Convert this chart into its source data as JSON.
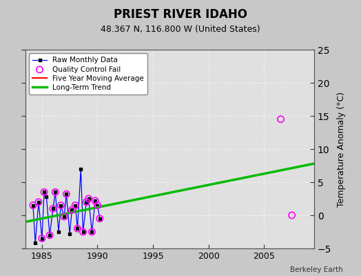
{
  "title": "PRIEST RIVER IDAHO",
  "subtitle": "48.367 N, 116.800 W (United States)",
  "credit": "Berkeley Earth",
  "ylabel": "Temperature Anomaly (°C)",
  "xlim": [
    1983.5,
    2009.5
  ],
  "ylim": [
    -5,
    25
  ],
  "yticks": [
    -5,
    0,
    5,
    10,
    15,
    20,
    25
  ],
  "xticks": [
    1985,
    1990,
    1995,
    2000,
    2005
  ],
  "bg_color": "#c8c8c8",
  "plot_bg_color": "#e0e0e0",
  "raw_x": [
    1984.2,
    1984.4,
    1984.7,
    1985.0,
    1985.2,
    1985.4,
    1985.7,
    1986.0,
    1986.2,
    1986.5,
    1986.7,
    1987.0,
    1987.2,
    1987.5,
    1987.7,
    1988.0,
    1988.2,
    1988.5,
    1988.7,
    1989.0,
    1989.2,
    1989.5,
    1989.8,
    1990.0,
    1990.2
  ],
  "raw_y": [
    1.5,
    -4.2,
    2.0,
    -3.5,
    3.5,
    2.8,
    -3.0,
    1.0,
    3.5,
    -2.5,
    1.5,
    -0.2,
    3.2,
    -2.8,
    0.8,
    1.5,
    -2.0,
    7.0,
    -2.5,
    2.0,
    2.5,
    -2.5,
    2.2,
    1.5,
    -0.5
  ],
  "qc_fail_x": [
    1984.2,
    1984.7,
    1985.0,
    1985.2,
    1985.7,
    1986.0,
    1986.2,
    1986.7,
    1987.0,
    1987.2,
    1987.7,
    1988.0,
    1988.2,
    1988.7,
    1989.0,
    1989.2,
    1989.5,
    1989.8,
    1990.0,
    1990.2,
    2006.5,
    2007.5
  ],
  "qc_fail_y": [
    1.5,
    2.0,
    -3.5,
    3.5,
    -3.0,
    1.0,
    3.5,
    1.5,
    -0.2,
    3.2,
    0.8,
    1.5,
    -2.0,
    -2.5,
    2.0,
    2.5,
    -2.5,
    2.2,
    1.5,
    -0.5,
    14.5,
    0.0
  ],
  "trend_x": [
    1983.5,
    2009.5
  ],
  "trend_y": [
    -1.0,
    7.8
  ],
  "grid_color": "#ffffff",
  "raw_line_color": "#0000ff",
  "raw_dot_color": "#000000",
  "qc_color": "#ff00ff",
  "trend_color": "#00bb00",
  "moving_avg_color": "#ff0000",
  "grid_alpha": 0.6,
  "grid_linestyle": "--"
}
